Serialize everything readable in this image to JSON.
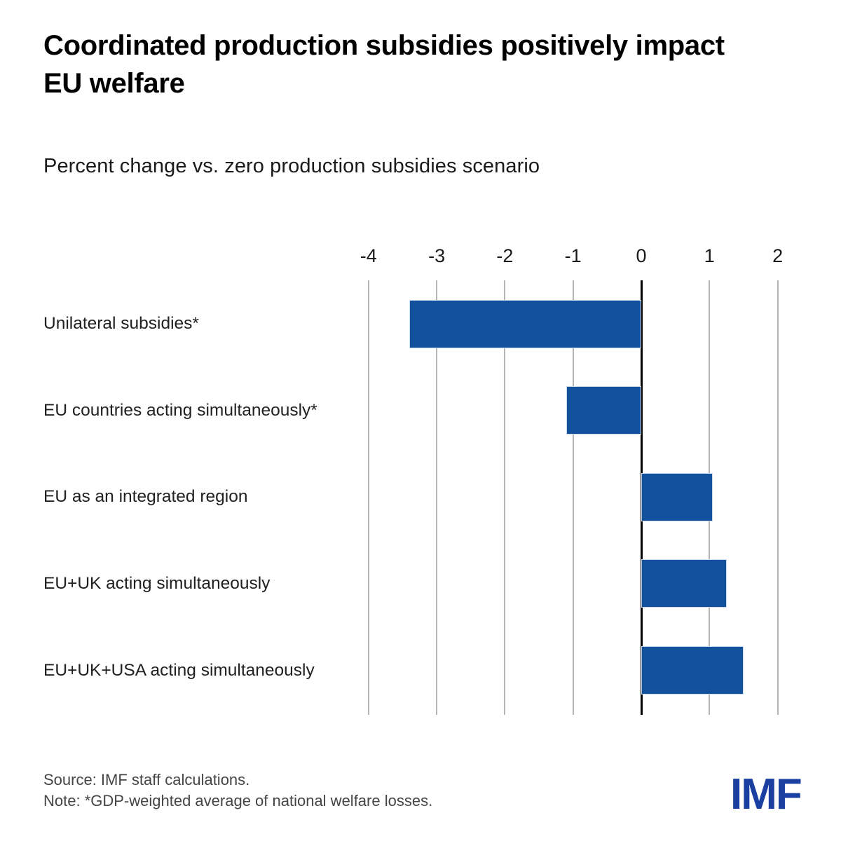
{
  "figure": {
    "title": "Coordinated production subsidies positively impact EU welfare",
    "subtitle": "Percent change vs. zero production subsidies scenario",
    "source": "Source: IMF staff calculations.",
    "note": "Note: *GDP-weighted average of national welfare losses.",
    "logo": "IMF"
  },
  "colors": {
    "bar": "#11519E",
    "zero_line": "#000000",
    "gridline": "#B5B5B8",
    "text": "#1A1A1A",
    "footer_text": "#454545",
    "logo_blue": "#1A3FA0",
    "background": "#FFFFFF"
  },
  "chart_data": {
    "type": "bar",
    "orientation": "horizontal",
    "title": "Coordinated production subsidies positively impact EU welfare",
    "subtitle": "Percent change vs. zero production subsidies scenario",
    "categories": [
      "Unilateral subsidies*",
      "EU countries acting simultaneously*",
      "EU as an integrated region",
      "EU+UK acting simultaneously",
      "EU+UK+USA acting simultaneously"
    ],
    "values": [
      -3.4,
      -1.1,
      1.05,
      1.25,
      1.5
    ],
    "xlabel": "",
    "ylabel": "",
    "xticks": [
      -4,
      -3,
      -2,
      -1,
      0,
      1,
      2
    ],
    "xlim": [
      -4.5,
      2.5
    ],
    "grid": "vertical-gridlines-on",
    "legend": "none",
    "source": "Source: IMF staff calculations.",
    "note": "Note: *GDP-weighted average of national welfare losses."
  }
}
